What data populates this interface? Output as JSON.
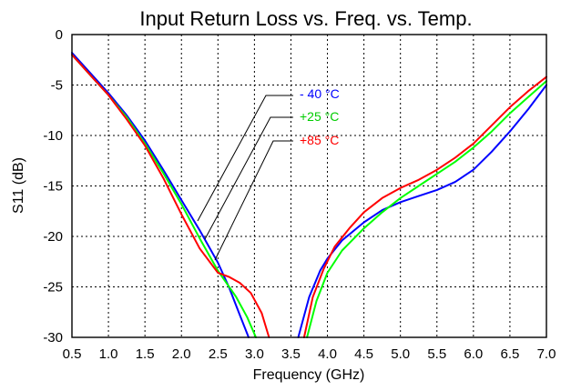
{
  "chart_data": {
    "type": "line",
    "title": "Input Return Loss vs. Freq. vs. Temp.",
    "xlabel": "Frequency (GHz)",
    "ylabel": "S11 (dB)",
    "xlim": [
      0.5,
      7.0
    ],
    "ylim": [
      -30,
      0
    ],
    "xticks": [
      "0.5",
      "1.0",
      "1.5",
      "2.0",
      "2.5",
      "3.0",
      "3.5",
      "4.0",
      "4.5",
      "5.0",
      "5.5",
      "6.0",
      "6.5",
      "7.0"
    ],
    "yticks": [
      "0",
      "-5",
      "-10",
      "-15",
      "-20",
      "-25",
      "-30"
    ],
    "grid": true,
    "legend_placement": "center",
    "series": [
      {
        "name": "- 40 °C",
        "color": "#0000ff",
        "x": [
          0.5,
          0.75,
          1.0,
          1.25,
          1.5,
          1.75,
          2.0,
          2.25,
          2.5,
          2.65,
          2.8,
          2.92,
          3.6,
          3.75,
          3.9,
          4.0,
          4.2,
          4.5,
          4.75,
          5.0,
          5.25,
          5.5,
          5.75,
          6.0,
          6.25,
          6.5,
          6.75,
          7.0
        ],
        "y": [
          -1.8,
          -3.8,
          -5.8,
          -8.0,
          -10.5,
          -13.4,
          -16.4,
          -19.4,
          -22.6,
          -25.0,
          -27.8,
          -30.0,
          -30.0,
          -26.0,
          -23.4,
          -22.2,
          -20.4,
          -18.6,
          -17.4,
          -16.6,
          -16.0,
          -15.4,
          -14.6,
          -13.4,
          -11.6,
          -9.6,
          -7.4,
          -5.0
        ]
      },
      {
        "name": "+25 °C",
        "color": "#00ff00",
        "x": [
          0.5,
          0.75,
          1.0,
          1.25,
          1.5,
          1.75,
          2.0,
          2.25,
          2.5,
          2.75,
          2.9,
          3.02,
          3.72,
          3.85,
          4.0,
          4.2,
          4.5,
          4.75,
          5.0,
          5.25,
          5.5,
          5.75,
          6.0,
          6.25,
          6.5,
          6.75,
          7.0
        ],
        "y": [
          -2.0,
          -4.0,
          -6.0,
          -8.2,
          -10.8,
          -13.7,
          -16.8,
          -20.2,
          -23.4,
          -26.0,
          -28.0,
          -30.0,
          -30.0,
          -26.4,
          -23.6,
          -21.4,
          -19.2,
          -17.6,
          -16.2,
          -15.0,
          -13.8,
          -12.6,
          -11.2,
          -9.6,
          -7.8,
          -6.2,
          -4.6
        ]
      },
      {
        "name": "+85 °C",
        "color": "#ff0000",
        "x": [
          0.5,
          0.75,
          1.0,
          1.25,
          1.5,
          1.75,
          2.0,
          2.25,
          2.5,
          2.65,
          2.8,
          2.95,
          3.1,
          3.2,
          3.68,
          3.8,
          3.95,
          4.1,
          4.3,
          4.5,
          4.75,
          5.0,
          5.25,
          5.5,
          5.75,
          6.0,
          6.25,
          6.5,
          6.75,
          7.0
        ],
        "y": [
          -2.0,
          -4.0,
          -6.0,
          -8.4,
          -11.0,
          -14.2,
          -17.8,
          -21.2,
          -23.6,
          -24.0,
          -24.6,
          -25.6,
          -27.6,
          -30.0,
          -30.0,
          -26.0,
          -23.2,
          -21.0,
          -19.2,
          -17.6,
          -16.2,
          -15.2,
          -14.4,
          -13.4,
          -12.2,
          -10.8,
          -9.0,
          -7.2,
          -5.6,
          -4.2
        ]
      }
    ]
  }
}
